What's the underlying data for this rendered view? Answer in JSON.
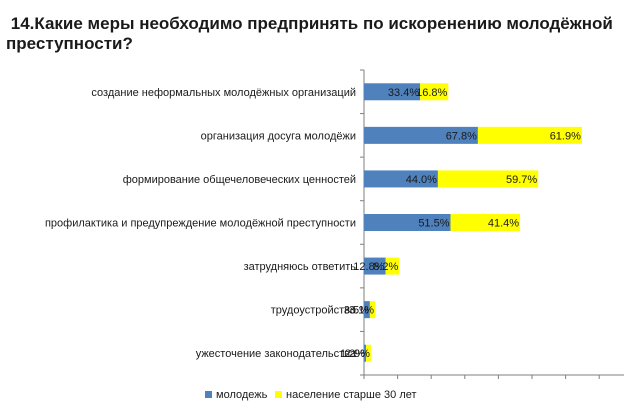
{
  "chart_data": {
    "type": "bar",
    "orientation": "horizontal",
    "stacked": true,
    "title": " 14.Какие меры необходимо предпринять по искоренению молодёжной преступности?",
    "categories": [
      "создание неформальных молодёжных организаций",
      "организация досуга молодёжи",
      "формирование общечеловеческих ценностей",
      "профилактика  и предупреждение молодёжной преступности",
      "затрудняюсь ответить",
      "трудоустройство",
      "ужесточение законодательства"
    ],
    "series": [
      {
        "name": "молодежь",
        "color": "#4f81bd",
        "values": [
          33.4,
          67.8,
          44.0,
          51.5,
          12.8,
          3.5,
          1.2
        ],
        "labels": [
          "33.4%",
          "67.8%",
          "44.0%",
          "51.5%",
          "12.8%",
          "3.5%",
          "1.2%"
        ]
      },
      {
        "name": "население старше 30 лет",
        "color": "#ffff00",
        "values": [
          16.8,
          61.9,
          59.7,
          41.4,
          8.2,
          3.1,
          2.9
        ],
        "labels": [
          "16.8%",
          "61.9%",
          "59.7%",
          "41.4%",
          "8.2%",
          "3.1%",
          "2.9%"
        ]
      }
    ],
    "xlim": [
      0,
      200
    ],
    "grid": false,
    "legend": "bottom"
  }
}
